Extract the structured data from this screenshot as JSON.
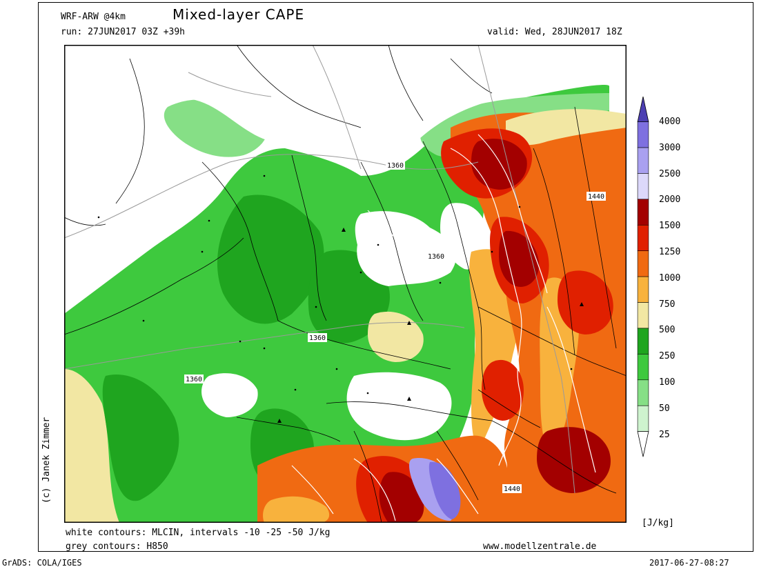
{
  "header": {
    "model": "WRF-ARW @4km",
    "title": "Mixed-layer CAPE",
    "run": "run: 27JUN2017 03Z +39h",
    "valid": "valid: Wed, 28JUN2017 18Z"
  },
  "footer": {
    "note_cin": "white contours: MLCIN, intervals -10 -25 -50 J/kg",
    "note_h850": "grey contours: H850",
    "website": "www.modellzentrale.de",
    "grads": "GrADS: COLA/IGES",
    "timestamp": "2017-06-27-08:27",
    "author": "(c) Janek Zimmer"
  },
  "colorbar": {
    "unit": "[J/kg]",
    "labels": [
      "4000",
      "3000",
      "2500",
      "2000",
      "1500",
      "1250",
      "1000",
      "750",
      "500",
      "250",
      "100",
      "50",
      "25"
    ],
    "colors": [
      "#4c3fb2",
      "#7e70e0",
      "#a9a0f0",
      "#dcd8fa",
      "#a30000",
      "#e02000",
      "#f06a12",
      "#f8b23d",
      "#f2e7a3",
      "#1fa51f",
      "#3ec93e",
      "#86df86",
      "#cef3ce"
    ]
  },
  "map": {
    "contour_labels": [
      "1360",
      "1360",
      "1360",
      "1360",
      "1440",
      "1440"
    ],
    "colors": {
      "green_dark": "#1fa51f",
      "green_mid": "#3ec93e",
      "green_light": "#86df86",
      "green_pale": "#cef3ce",
      "tan": "#f2e7a3",
      "yellow_orange": "#f8b23d",
      "orange": "#f06a12",
      "red": "#e02000",
      "dark_red": "#a30000",
      "purple_light": "#a9a0f0",
      "purple": "#7e70e0"
    }
  }
}
